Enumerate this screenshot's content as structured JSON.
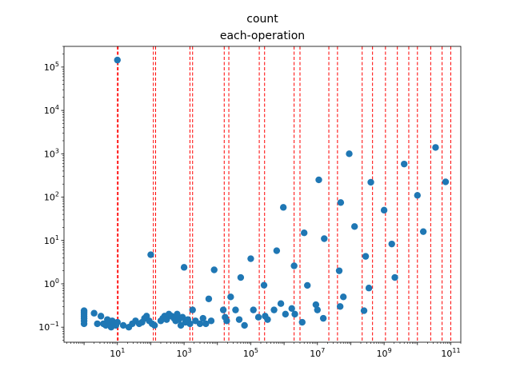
{
  "chart_data": {
    "type": "scatter",
    "title": "count",
    "subtitle": "each-operation",
    "xlabel": "",
    "ylabel": "",
    "xscale": "log",
    "yscale": "log",
    "xlim": [
      0.25,
      200000000000
    ],
    "ylim": [
      0.045,
      300000
    ],
    "grid": false,
    "marker_color": "#1f77b4",
    "vline_color": "#ff0000",
    "x_ticks": [
      {
        "value": 10,
        "base": "10",
        "exp": "1"
      },
      {
        "value": 1000,
        "base": "10",
        "exp": "3"
      },
      {
        "value": 100000,
        "base": "10",
        "exp": "5"
      },
      {
        "value": 10000000,
        "base": "10",
        "exp": "7"
      },
      {
        "value": 1000000000,
        "base": "10",
        "exp": "9"
      },
      {
        "value": 100000000000,
        "base": "10",
        "exp": "11"
      }
    ],
    "y_ticks": [
      {
        "value": 0.1,
        "base": "10",
        "exp": "−1"
      },
      {
        "value": 1,
        "base": "10",
        "exp": "0"
      },
      {
        "value": 10,
        "base": "10",
        "exp": "1"
      },
      {
        "value": 100,
        "base": "10",
        "exp": "2"
      },
      {
        "value": 1000,
        "base": "10",
        "exp": "3"
      },
      {
        "value": 10000,
        "base": "10",
        "exp": "4"
      },
      {
        "value": 100000,
        "base": "10",
        "exp": "5"
      }
    ],
    "vlines": [
      10,
      10.5,
      120,
      140,
      1500,
      1800,
      16000,
      22000,
      180000,
      260000,
      2000000,
      3000000,
      22000000,
      40000000,
      220000000,
      450000000,
      1100000000,
      2500000000,
      5500000000,
      10000000000,
      25000000000,
      55000000000,
      100000000000
    ],
    "points": [
      {
        "x": 1,
        "y": 0.12
      },
      {
        "x": 1,
        "y": 0.14
      },
      {
        "x": 1,
        "y": 0.16
      },
      {
        "x": 1,
        "y": 0.18
      },
      {
        "x": 1,
        "y": 0.2
      },
      {
        "x": 1,
        "y": 0.22
      },
      {
        "x": 1,
        "y": 0.24
      },
      {
        "x": 2,
        "y": 0.21
      },
      {
        "x": 2.5,
        "y": 0.12
      },
      {
        "x": 3.2,
        "y": 0.18
      },
      {
        "x": 3.8,
        "y": 0.12
      },
      {
        "x": 4.5,
        "y": 0.11
      },
      {
        "x": 5,
        "y": 0.15
      },
      {
        "x": 5.5,
        "y": 0.13
      },
      {
        "x": 6,
        "y": 0.12
      },
      {
        "x": 6.5,
        "y": 0.1
      },
      {
        "x": 7,
        "y": 0.14
      },
      {
        "x": 8,
        "y": 0.12
      },
      {
        "x": 9,
        "y": 0.11
      },
      {
        "x": 10,
        "y": 145000
      },
      {
        "x": 10,
        "y": 0.13
      },
      {
        "x": 15,
        "y": 0.11
      },
      {
        "x": 22,
        "y": 0.1
      },
      {
        "x": 28,
        "y": 0.12
      },
      {
        "x": 35,
        "y": 0.14
      },
      {
        "x": 45,
        "y": 0.12
      },
      {
        "x": 55,
        "y": 0.13
      },
      {
        "x": 65,
        "y": 0.16
      },
      {
        "x": 75,
        "y": 0.18
      },
      {
        "x": 90,
        "y": 0.14
      },
      {
        "x": 100,
        "y": 4.7
      },
      {
        "x": 110,
        "y": 0.12
      },
      {
        "x": 130,
        "y": 0.11
      },
      {
        "x": 200,
        "y": 0.14
      },
      {
        "x": 230,
        "y": 0.16
      },
      {
        "x": 260,
        "y": 0.18
      },
      {
        "x": 300,
        "y": 0.15
      },
      {
        "x": 350,
        "y": 0.2
      },
      {
        "x": 420,
        "y": 0.18
      },
      {
        "x": 500,
        "y": 0.16
      },
      {
        "x": 560,
        "y": 0.14
      },
      {
        "x": 620,
        "y": 0.2
      },
      {
        "x": 700,
        "y": 0.15
      },
      {
        "x": 800,
        "y": 0.11
      },
      {
        "x": 900,
        "y": 0.17
      },
      {
        "x": 1000,
        "y": 2.4
      },
      {
        "x": 1100,
        "y": 0.13
      },
      {
        "x": 1300,
        "y": 0.15
      },
      {
        "x": 1500,
        "y": 0.12
      },
      {
        "x": 1800,
        "y": 0.25
      },
      {
        "x": 2200,
        "y": 0.14
      },
      {
        "x": 3000,
        "y": 0.12
      },
      {
        "x": 3700,
        "y": 0.16
      },
      {
        "x": 4500,
        "y": 0.12
      },
      {
        "x": 5500,
        "y": 0.45
      },
      {
        "x": 6500,
        "y": 0.14
      },
      {
        "x": 8000,
        "y": 2.1
      },
      {
        "x": 15000,
        "y": 0.25
      },
      {
        "x": 17000,
        "y": 0.17
      },
      {
        "x": 19000,
        "y": 0.14
      },
      {
        "x": 25000,
        "y": 0.5
      },
      {
        "x": 35000,
        "y": 0.25
      },
      {
        "x": 45000,
        "y": 0.15
      },
      {
        "x": 50000,
        "y": 1.4
      },
      {
        "x": 65000,
        "y": 0.11
      },
      {
        "x": 100000,
        "y": 3.8
      },
      {
        "x": 120000,
        "y": 0.25
      },
      {
        "x": 170000,
        "y": 0.17
      },
      {
        "x": 250000,
        "y": 0.93
      },
      {
        "x": 270000,
        "y": 0.18
      },
      {
        "x": 320000,
        "y": 0.15
      },
      {
        "x": 500000,
        "y": 0.25
      },
      {
        "x": 600000,
        "y": 5.8
      },
      {
        "x": 800000,
        "y": 0.35
      },
      {
        "x": 950000,
        "y": 58
      },
      {
        "x": 1100000,
        "y": 0.2
      },
      {
        "x": 1700000,
        "y": 0.27
      },
      {
        "x": 2000000,
        "y": 2.6
      },
      {
        "x": 2100000,
        "y": 0.2
      },
      {
        "x": 3500000,
        "y": 0.13
      },
      {
        "x": 4000000,
        "y": 15
      },
      {
        "x": 5000000,
        "y": 0.92
      },
      {
        "x": 9000000,
        "y": 0.33
      },
      {
        "x": 10000000,
        "y": 0.25
      },
      {
        "x": 11000000,
        "y": 250
      },
      {
        "x": 15000000,
        "y": 0.16
      },
      {
        "x": 16000000,
        "y": 11
      },
      {
        "x": 45000000,
        "y": 2.0
      },
      {
        "x": 48000000,
        "y": 0.3
      },
      {
        "x": 50000000,
        "y": 75
      },
      {
        "x": 60000000,
        "y": 0.5
      },
      {
        "x": 90000000,
        "y": 1000
      },
      {
        "x": 130000000,
        "y": 21
      },
      {
        "x": 250000000,
        "y": 0.24
      },
      {
        "x": 280000000,
        "y": 4.3
      },
      {
        "x": 350000000,
        "y": 0.8
      },
      {
        "x": 400000000,
        "y": 220
      },
      {
        "x": 1000000000,
        "y": 50
      },
      {
        "x": 1700000000,
        "y": 8.3
      },
      {
        "x": 2100000000,
        "y": 1.4
      },
      {
        "x": 4000000000,
        "y": 580
      },
      {
        "x": 10000000000,
        "y": 110
      },
      {
        "x": 15000000000,
        "y": 16
      },
      {
        "x": 35000000000,
        "y": 1400
      },
      {
        "x": 70000000000,
        "y": 225
      }
    ]
  }
}
